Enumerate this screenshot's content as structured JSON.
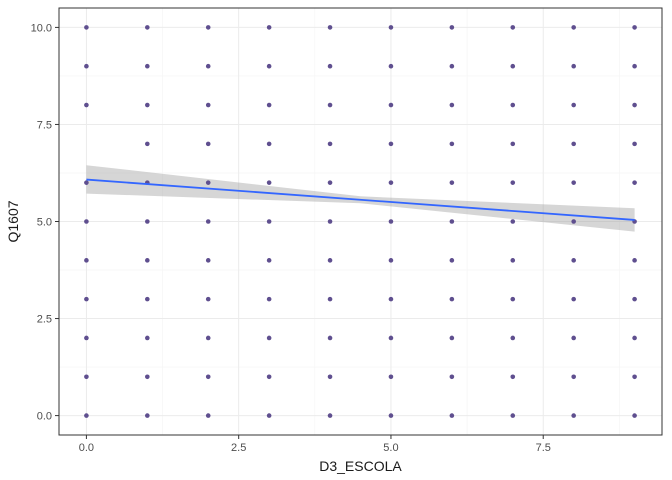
{
  "chart_data": {
    "type": "scatter",
    "title": "",
    "xlabel": "D3_ESCOLA",
    "ylabel": "Q1607",
    "xlim": [
      -0.45,
      9.45
    ],
    "ylim": [
      -0.5,
      10.5
    ],
    "x_ticks": [
      0,
      2.5,
      5,
      7.5
    ],
    "x_tick_labels": [
      "0.0",
      "2.5",
      "5.0",
      "7.5"
    ],
    "y_ticks": [
      0,
      2.5,
      5,
      7.5,
      10
    ],
    "y_tick_labels": [
      "0.0",
      "2.5",
      "5.0",
      "7.5",
      "10.0"
    ],
    "grid": true,
    "legend": "none",
    "colors": {
      "points": "#5f4f8f",
      "trend_line": "#3366ff",
      "confidence_band": "#999999",
      "grid_major": "#ebebeb",
      "grid_minor": "#f5f5f5",
      "panel_border": "#333333"
    },
    "points": [
      [
        0,
        0
      ],
      [
        0,
        1
      ],
      [
        0,
        2
      ],
      [
        0,
        3
      ],
      [
        0,
        4
      ],
      [
        0,
        5
      ],
      [
        0,
        6
      ],
      [
        0,
        8
      ],
      [
        0,
        9
      ],
      [
        0,
        10
      ],
      [
        1,
        0
      ],
      [
        1,
        1
      ],
      [
        1,
        2
      ],
      [
        1,
        3
      ],
      [
        1,
        4
      ],
      [
        1,
        5
      ],
      [
        1,
        6
      ],
      [
        1,
        7
      ],
      [
        1,
        8
      ],
      [
        1,
        9
      ],
      [
        1,
        10
      ],
      [
        2,
        0
      ],
      [
        2,
        1
      ],
      [
        2,
        2
      ],
      [
        2,
        3
      ],
      [
        2,
        4
      ],
      [
        2,
        5
      ],
      [
        2,
        6
      ],
      [
        2,
        7
      ],
      [
        2,
        8
      ],
      [
        2,
        9
      ],
      [
        2,
        10
      ],
      [
        3,
        0
      ],
      [
        3,
        1
      ],
      [
        3,
        2
      ],
      [
        3,
        3
      ],
      [
        3,
        4
      ],
      [
        3,
        5
      ],
      [
        3,
        6
      ],
      [
        3,
        7
      ],
      [
        3,
        8
      ],
      [
        3,
        9
      ],
      [
        3,
        10
      ],
      [
        4,
        0
      ],
      [
        4,
        1
      ],
      [
        4,
        2
      ],
      [
        4,
        3
      ],
      [
        4,
        4
      ],
      [
        4,
        5
      ],
      [
        4,
        6
      ],
      [
        4,
        7
      ],
      [
        4,
        8
      ],
      [
        4,
        9
      ],
      [
        4,
        10
      ],
      [
        5,
        0
      ],
      [
        5,
        1
      ],
      [
        5,
        2
      ],
      [
        5,
        3
      ],
      [
        5,
        4
      ],
      [
        5,
        5
      ],
      [
        5,
        6
      ],
      [
        5,
        7
      ],
      [
        5,
        8
      ],
      [
        5,
        9
      ],
      [
        5,
        10
      ],
      [
        6,
        0
      ],
      [
        6,
        1
      ],
      [
        6,
        2
      ],
      [
        6,
        3
      ],
      [
        6,
        4
      ],
      [
        6,
        5
      ],
      [
        6,
        6
      ],
      [
        6,
        7
      ],
      [
        6,
        8
      ],
      [
        6,
        9
      ],
      [
        6,
        10
      ],
      [
        7,
        0
      ],
      [
        7,
        1
      ],
      [
        7,
        2
      ],
      [
        7,
        3
      ],
      [
        7,
        4
      ],
      [
        7,
        5
      ],
      [
        7,
        6
      ],
      [
        7,
        7
      ],
      [
        7,
        8
      ],
      [
        7,
        9
      ],
      [
        7,
        10
      ],
      [
        8,
        0
      ],
      [
        8,
        1
      ],
      [
        8,
        2
      ],
      [
        8,
        3
      ],
      [
        8,
        4
      ],
      [
        8,
        5
      ],
      [
        8,
        6
      ],
      [
        8,
        7
      ],
      [
        8,
        8
      ],
      [
        8,
        9
      ],
      [
        8,
        10
      ],
      [
        9,
        0
      ],
      [
        9,
        1
      ],
      [
        9,
        2
      ],
      [
        9,
        3
      ],
      [
        9,
        4
      ],
      [
        9,
        5
      ],
      [
        9,
        6
      ],
      [
        9,
        7
      ],
      [
        9,
        8
      ],
      [
        9,
        9
      ],
      [
        9,
        10
      ]
    ],
    "trend_line": {
      "method": "linear",
      "x": [
        0,
        9
      ],
      "y": [
        6.08,
        5.04
      ],
      "ci_lower": [
        5.72,
        4.74
      ],
      "ci_upper": [
        6.45,
        5.34
      ],
      "ci_mid_x": 4.5,
      "ci_mid_lower": [
        5.47
      ],
      "ci_mid_upper": [
        5.65
      ]
    }
  }
}
